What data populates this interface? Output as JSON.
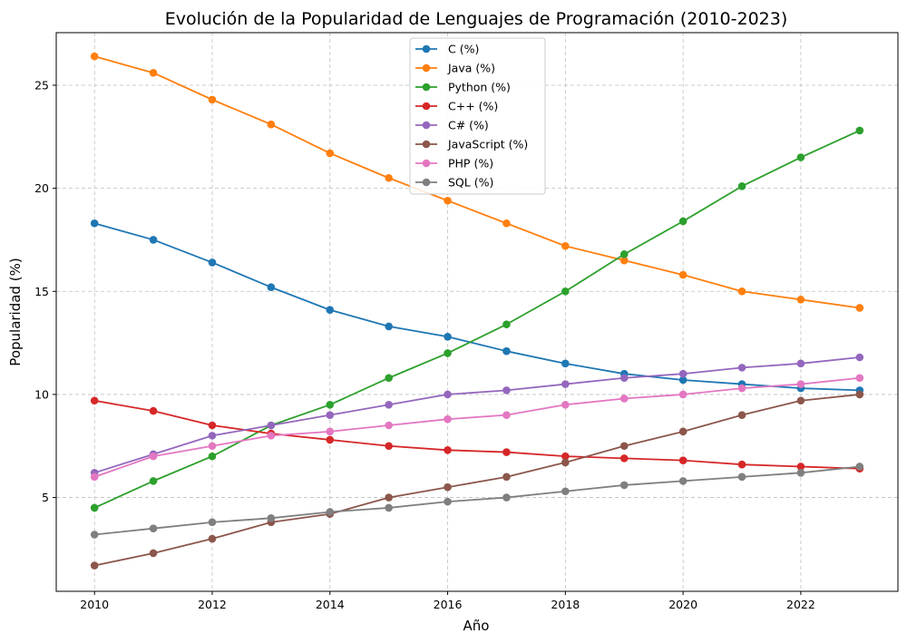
{
  "chart_data": {
    "type": "line",
    "title": "Evolución de la Popularidad de Lenguajes de Programación (2010-2023)",
    "xlabel": "Año",
    "ylabel": "Popularidad (%)",
    "x": [
      2010,
      2011,
      2012,
      2013,
      2014,
      2015,
      2016,
      2017,
      2018,
      2019,
      2020,
      2021,
      2022,
      2023
    ],
    "xlim": [
      2009.35,
      2023.65
    ],
    "ylim": [
      0.45,
      27.55
    ],
    "xticks": [
      2010,
      2012,
      2014,
      2016,
      2018,
      2020,
      2022
    ],
    "yticks": [
      5,
      10,
      15,
      20,
      25
    ],
    "grid": true,
    "legend_position": "upper-center",
    "series": [
      {
        "name": "C (%)",
        "color": "#1f77b4",
        "values": [
          18.3,
          17.5,
          16.4,
          15.2,
          14.1,
          13.3,
          12.8,
          12.1,
          11.5,
          11.0,
          10.7,
          10.5,
          10.3,
          10.2
        ]
      },
      {
        "name": "Java (%)",
        "color": "#ff7f0e",
        "values": [
          26.4,
          25.6,
          24.3,
          23.1,
          21.7,
          20.5,
          19.4,
          18.3,
          17.2,
          16.5,
          15.8,
          15.0,
          14.6,
          14.2
        ]
      },
      {
        "name": "Python (%)",
        "color": "#2ca02c",
        "values": [
          4.5,
          5.8,
          7.0,
          8.5,
          9.5,
          10.8,
          12.0,
          13.4,
          15.0,
          16.8,
          18.4,
          20.1,
          21.5,
          22.8
        ]
      },
      {
        "name": "C++ (%)",
        "color": "#d62728",
        "values": [
          9.7,
          9.2,
          8.5,
          8.1,
          7.8,
          7.5,
          7.3,
          7.2,
          7.0,
          6.9,
          6.8,
          6.6,
          6.5,
          6.4
        ]
      },
      {
        "name": "C# (%)",
        "color": "#9467bd",
        "values": [
          6.2,
          7.1,
          8.0,
          8.5,
          9.0,
          9.5,
          10.0,
          10.2,
          10.5,
          10.8,
          11.0,
          11.3,
          11.5,
          11.8
        ]
      },
      {
        "name": "JavaScript (%)",
        "color": "#8c564b",
        "values": [
          1.7,
          2.3,
          3.0,
          3.8,
          4.2,
          5.0,
          5.5,
          6.0,
          6.7,
          7.5,
          8.2,
          9.0,
          9.7,
          10.0
        ]
      },
      {
        "name": "PHP (%)",
        "color": "#e377c2",
        "values": [
          6.0,
          7.0,
          7.5,
          8.0,
          8.2,
          8.5,
          8.8,
          9.0,
          9.5,
          9.8,
          10.0,
          10.3,
          10.5,
          10.8
        ]
      },
      {
        "name": "SQL (%)",
        "color": "#7f7f7f",
        "values": [
          3.2,
          3.5,
          3.8,
          4.0,
          4.3,
          4.5,
          4.8,
          5.0,
          5.3,
          5.6,
          5.8,
          6.0,
          6.2,
          6.5
        ]
      }
    ]
  }
}
